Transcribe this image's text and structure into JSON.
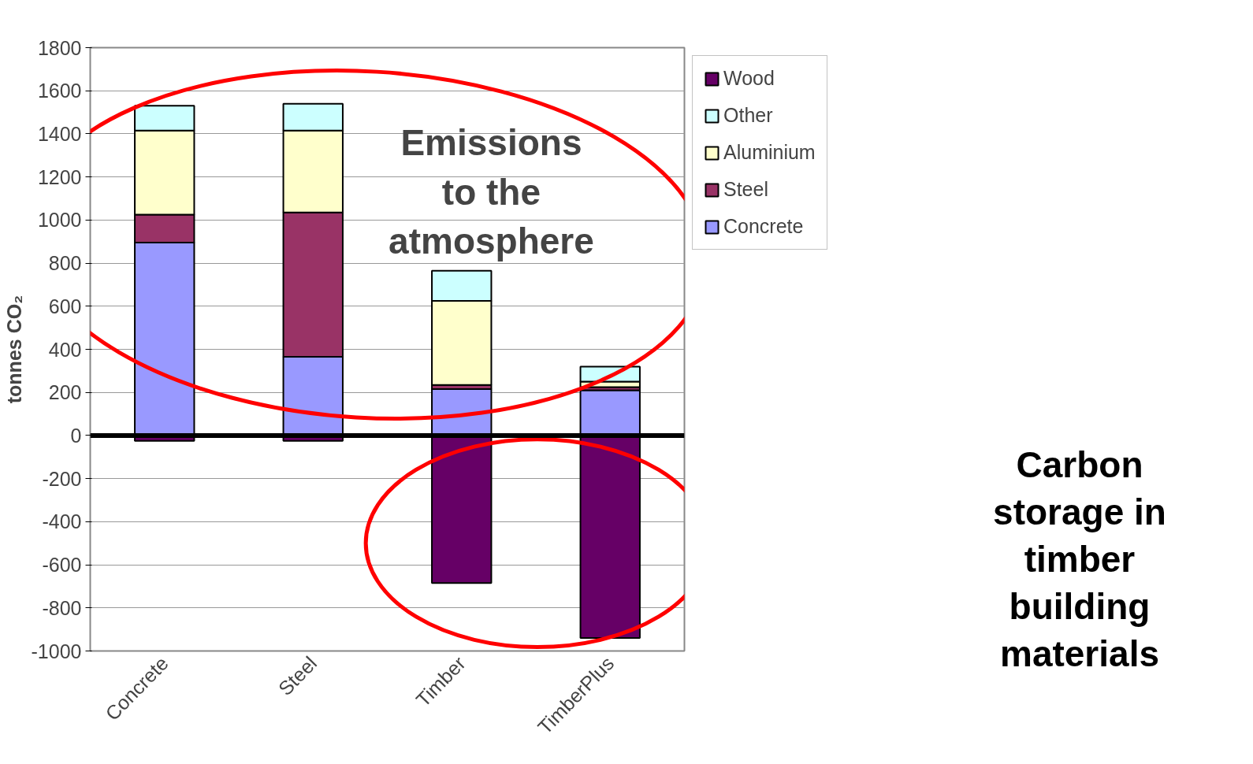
{
  "chart_data": {
    "type": "bar",
    "stacked": true,
    "ylabel": "tonnes CO₂",
    "categories": [
      "Concrete",
      "Steel",
      "Timber",
      "TimberPlus"
    ],
    "series": [
      {
        "name": "Concrete",
        "color": "#9999ff",
        "values": [
          895,
          365,
          215,
          210
        ]
      },
      {
        "name": "Steel",
        "color": "#993366",
        "values": [
          130,
          670,
          20,
          15
        ]
      },
      {
        "name": "Aluminium",
        "color": "#ffffcc",
        "values": [
          390,
          380,
          390,
          25
        ]
      },
      {
        "name": "Other",
        "color": "#ccffff",
        "values": [
          115,
          125,
          140,
          70
        ]
      },
      {
        "name": "Wood",
        "color": "#660066",
        "values": [
          -25,
          -25,
          -685,
          -940
        ]
      }
    ],
    "ylim": [
      -1000,
      1800
    ],
    "yticks": [
      -1000,
      -800,
      -600,
      -400,
      -200,
      0,
      200,
      400,
      600,
      800,
      1000,
      1200,
      1400,
      1600,
      1800
    ],
    "grid": "y",
    "legend": "right",
    "ref_lines": [
      {
        "axis": "y",
        "value": 0,
        "color": "#000000"
      }
    ],
    "annotations": [
      "Emissions to the atmosphere",
      "Carbon storage in timber building materials"
    ]
  }
}
